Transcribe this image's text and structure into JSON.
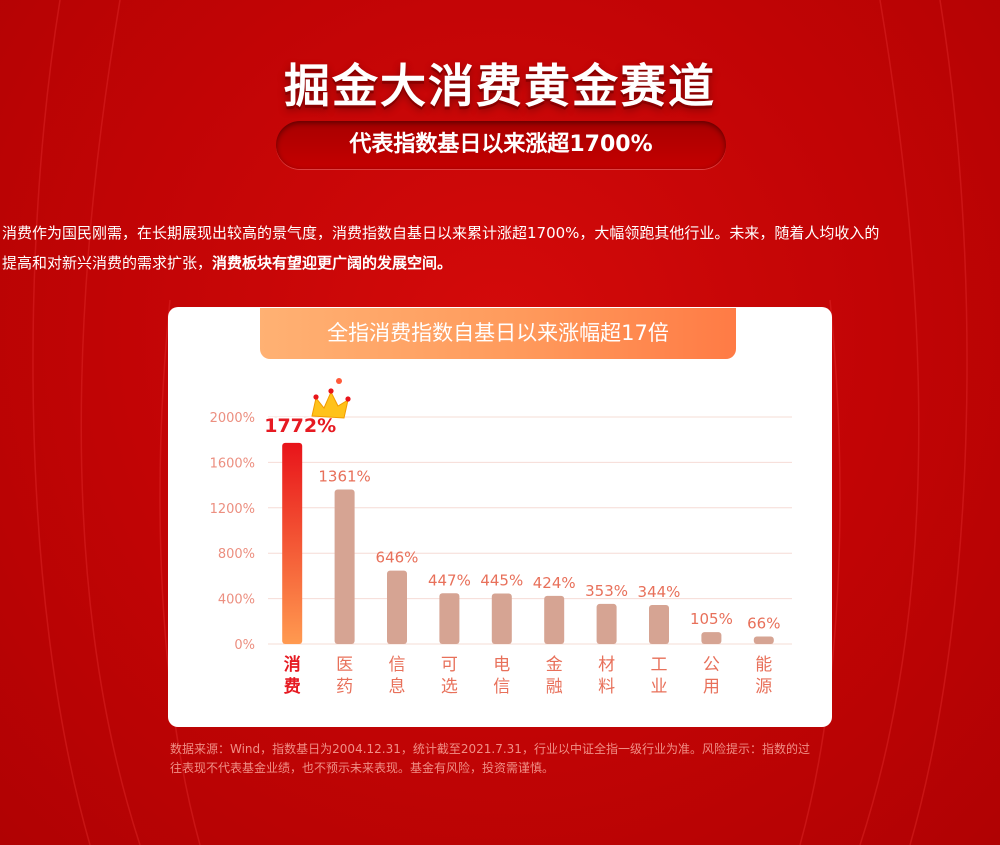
{
  "title": "掘金大消费黄金赛道",
  "subtitle": "代表指数基日以来涨超1700%",
  "description": {
    "line1": "消费作为国民刚需，在长期展现出较高的景气度，消费指数自基日以来累计涨超1700%，大幅领跑其他行业。未来，随着人均收入的",
    "line2_plain": "提高和对新兴消费的需求扩张，",
    "line2_bold": "消费板块有望迎更广阔的发展空间。"
  },
  "colors": {
    "background": "#c10405",
    "highlight_bar_top": "#e8141a",
    "highlight_bar_bottom": "#ff9a50",
    "bar": "#d6a493",
    "label": "#e8705a",
    "highlight_label": "#e61a22",
    "card_header": "#ff9a5c"
  },
  "chart_data": {
    "type": "bar",
    "title": "全指消费指数自基日以来涨幅超17倍",
    "categories": [
      "消费",
      "医药",
      "信息",
      "可选",
      "电信",
      "金融",
      "材料",
      "工业",
      "公用",
      "能源"
    ],
    "values": [
      1772,
      1361,
      646,
      447,
      445,
      424,
      353,
      344,
      105,
      66
    ],
    "value_labels": [
      "1772%",
      "1361%",
      "646%",
      "447%",
      "445%",
      "424%",
      "353%",
      "344%",
      "105%",
      "66%"
    ],
    "highlight_index": 0,
    "ylim": [
      0,
      2000
    ],
    "yticks": [
      0,
      400,
      800,
      1200,
      1600,
      2000
    ],
    "ytick_labels": [
      "0%",
      "400%",
      "800%",
      "1200%",
      "1600%",
      "2000%"
    ],
    "grid": true,
    "highlight_icon": "crown-icon"
  },
  "footnote": {
    "line1": "数据来源：Wind，指数基日为2004.12.31，统计截至2021.7.31，行业以中证全指一级行业为准。风险提示：指数的过",
    "line2": "往表现不代表基金业绩，也不预示未来表现。基金有风险，投资需谨慎。"
  }
}
